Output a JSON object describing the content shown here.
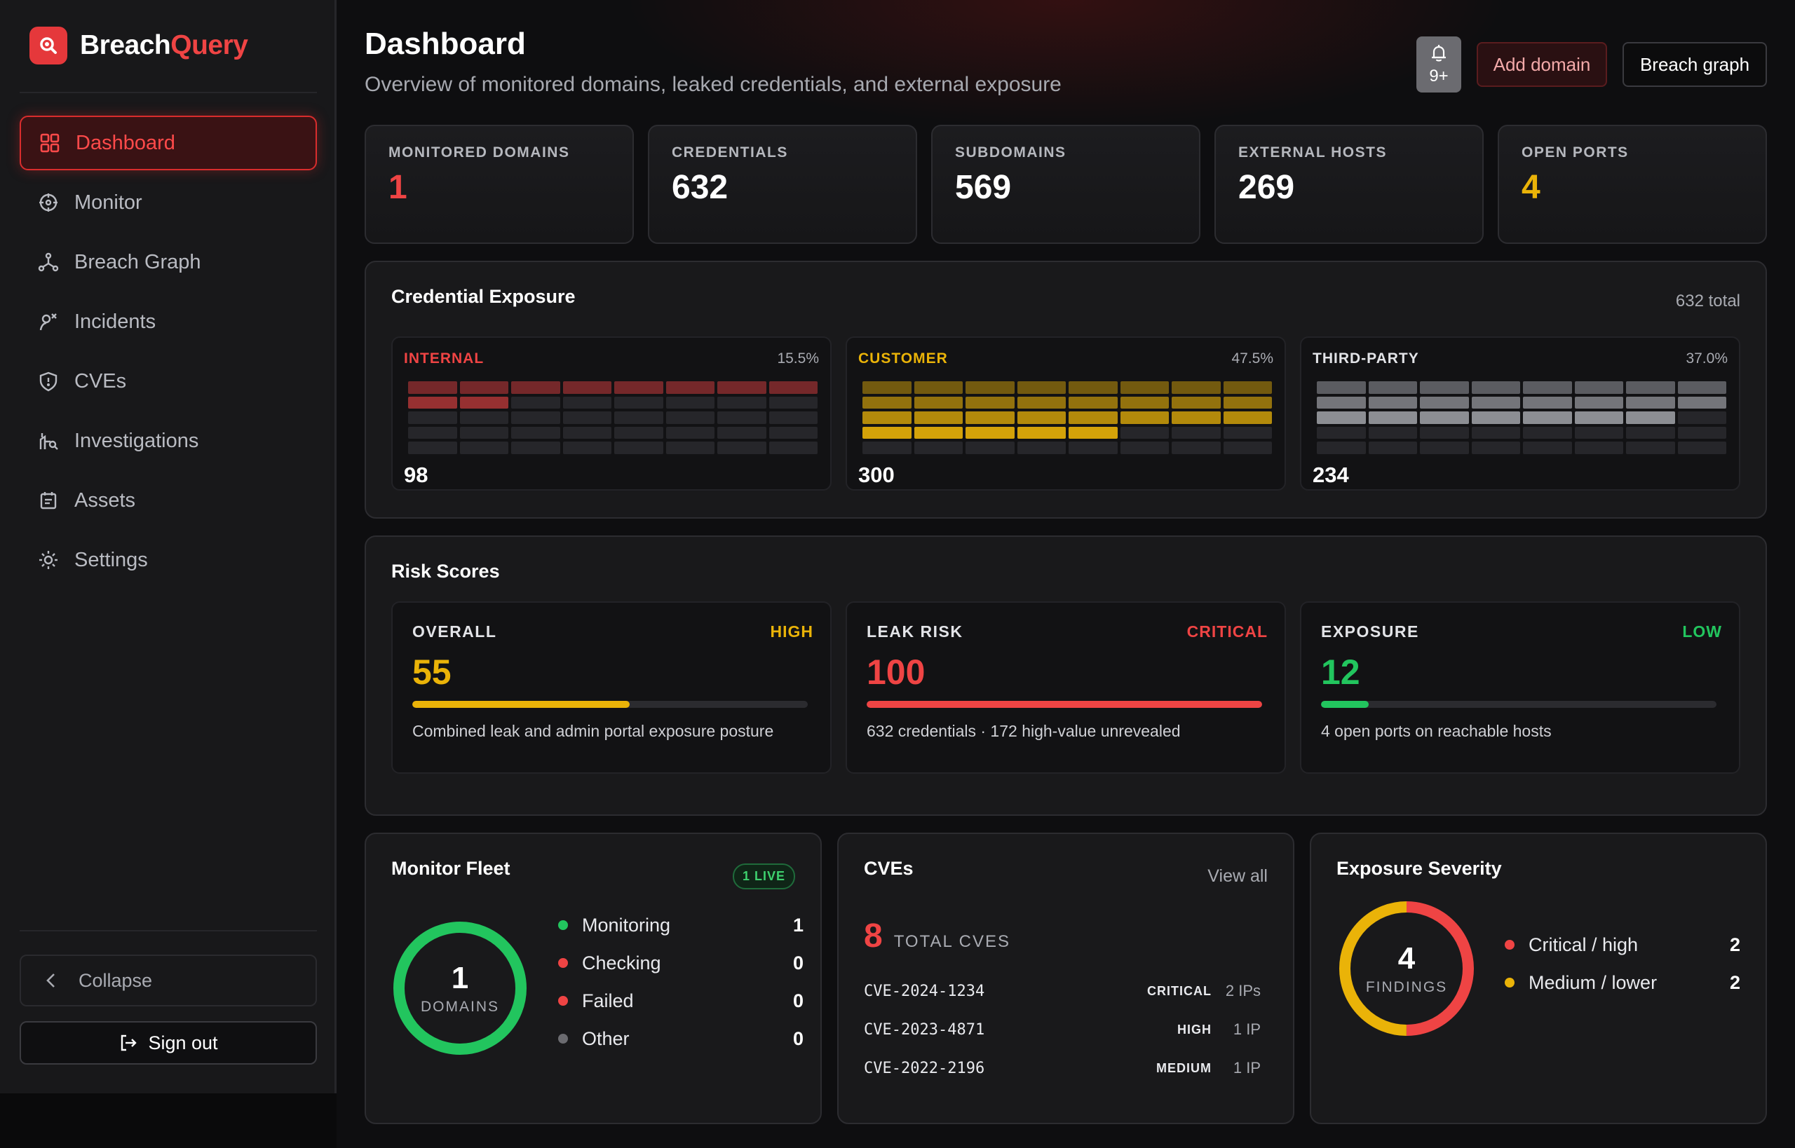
{
  "brand": {
    "name_part1": "Breach",
    "name_part2": "Query"
  },
  "nav": [
    {
      "label": "Dashboard",
      "icon": "grid-icon",
      "active": true
    },
    {
      "label": "Monitor",
      "icon": "crosshair-icon",
      "active": false
    },
    {
      "label": "Breach Graph",
      "icon": "graph-nodes-icon",
      "active": false
    },
    {
      "label": "Incidents",
      "icon": "incident-icon",
      "active": false
    },
    {
      "label": "CVEs",
      "icon": "shield-alert-icon",
      "active": false
    },
    {
      "label": "Investigations",
      "icon": "investigation-icon",
      "active": false
    },
    {
      "label": "Assets",
      "icon": "assets-icon",
      "active": false
    },
    {
      "label": "Settings",
      "icon": "gear-icon",
      "active": false
    }
  ],
  "sidebar_footer": {
    "collapse_label": "Collapse",
    "signout_label": "Sign out"
  },
  "header": {
    "title": "Dashboard",
    "subtitle": "Overview of monitored domains, leaked credentials, and external exposure",
    "notifications_badge": "9+",
    "add_domain_label": "Add domain",
    "breach_graph_label": "Breach graph"
  },
  "stats": [
    {
      "label": "MONITORED DOMAINS",
      "value": "1",
      "color": "#ef4444"
    },
    {
      "label": "CREDENTIALS",
      "value": "632",
      "color": "#ffffff"
    },
    {
      "label": "SUBDOMAINS",
      "value": "569",
      "color": "#ffffff"
    },
    {
      "label": "EXTERNAL HOSTS",
      "value": "269",
      "color": "#ffffff"
    },
    {
      "label": "OPEN PORTS",
      "value": "4",
      "color": "#eab308"
    }
  ],
  "credential_exposure": {
    "title": "Credential Exposure",
    "total_label": "632 total",
    "groups": [
      {
        "label": "INTERNAL",
        "percent_label": "15.5%",
        "count": "98",
        "percent": 15.5,
        "color": "#ef4444"
      },
      {
        "label": "CUSTOMER",
        "percent_label": "47.5%",
        "count": "300",
        "percent": 47.5,
        "color": "#eab308"
      },
      {
        "label": "THIRD-PARTY",
        "percent_label": "37.0%",
        "count": "234",
        "percent": 37.0,
        "color": "#b6b8be"
      }
    ]
  },
  "risk_scores": {
    "title": "Risk Scores",
    "cards": [
      {
        "label": "OVERALL",
        "level": "HIGH",
        "value": "55",
        "score": 55,
        "color": "#eab308",
        "description": "Combined leak and admin portal exposure posture"
      },
      {
        "label": "LEAK RISK",
        "level": "CRITICAL",
        "value": "100",
        "score": 100,
        "color": "#ef4444",
        "description": "632 credentials · 172 high-value unrevealed"
      },
      {
        "label": "EXPOSURE",
        "level": "LOW",
        "value": "12",
        "score": 12,
        "color": "#22c55e",
        "description": "4 open ports on reachable hosts"
      }
    ]
  },
  "monitor_fleet": {
    "title": "Monitor Fleet",
    "live_badge": "1 LIVE",
    "center_value": "1",
    "center_label": "DOMAINS",
    "items": [
      {
        "label": "Monitoring",
        "count": "1",
        "color": "#22c55e"
      },
      {
        "label": "Checking",
        "count": "0",
        "color": "#ef4444"
      },
      {
        "label": "Failed",
        "count": "0",
        "color": "#ef4444"
      },
      {
        "label": "Other",
        "count": "0",
        "color": "#6b6b70"
      }
    ]
  },
  "cves": {
    "title": "CVEs",
    "view_all_label": "View all",
    "total_value": "8",
    "total_label": "TOTAL CVES",
    "rows": [
      {
        "id": "CVE-2024-1234",
        "severity": "CRITICAL",
        "ips": "2 IPs"
      },
      {
        "id": "CVE-2023-4871",
        "severity": "HIGH",
        "ips": "1 IP"
      },
      {
        "id": "CVE-2022-2196",
        "severity": "MEDIUM",
        "ips": "1 IP"
      }
    ]
  },
  "exposure_severity": {
    "title": "Exposure Severity",
    "center_value": "4",
    "center_label": "FINDINGS",
    "items": [
      {
        "label": "Critical / high",
        "count": "2",
        "color": "#ef4444",
        "share": 0.5
      },
      {
        "label": "Medium / lower",
        "count": "2",
        "color": "#eab308",
        "share": 0.5
      }
    ]
  }
}
